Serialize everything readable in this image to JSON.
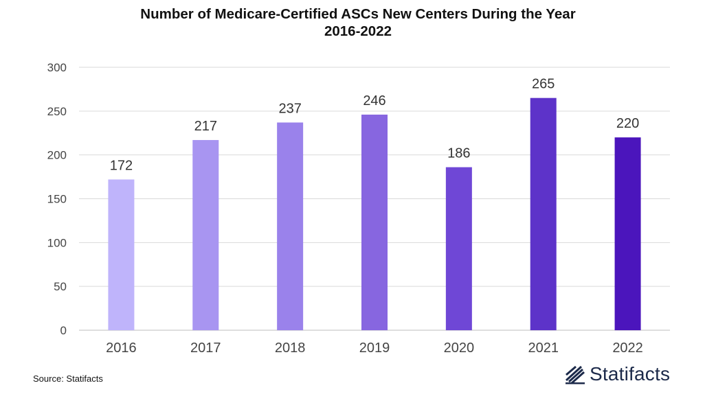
{
  "chart_data": {
    "type": "bar",
    "title": "Number of Medicare-Certified ASCs New Centers During the Year",
    "subtitle": "2016-2022",
    "categories": [
      "2016",
      "2017",
      "2018",
      "2019",
      "2020",
      "2021",
      "2022"
    ],
    "values": [
      172,
      217,
      237,
      246,
      186,
      265,
      220
    ],
    "data_labels": [
      "172",
      "217",
      "237",
      "246",
      "186",
      "265",
      "220"
    ],
    "yticks": [
      "0",
      "50",
      "100",
      "150",
      "200",
      "250",
      "300"
    ],
    "ylim": [
      0,
      300
    ],
    "grid": true,
    "legend": "none",
    "colors": [
      "#bfb4fb",
      "#a895f1",
      "#9a82eb",
      "#8766e0",
      "#6f47d6",
      "#5d33c9",
      "#4b15bc"
    ]
  },
  "source": "Source: Statifacts",
  "logo": {
    "text": "Statifacts",
    "icon": "statifacts-logo-icon"
  }
}
